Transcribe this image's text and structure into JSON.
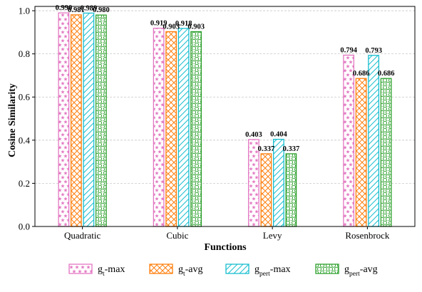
{
  "chart_data": {
    "type": "bar",
    "categories": [
      "Quadratic",
      "Cubic",
      "Levy",
      "Rosenbrock"
    ],
    "series": [
      {
        "name": "g_t-max",
        "legend_main": "g",
        "legend_sub": "t",
        "legend_suffix": "-max",
        "values": [
          0.99,
          0.919,
          0.403,
          0.794
        ],
        "labels": [
          "0.990",
          "0.919",
          "0.403",
          "0.794"
        ],
        "color": "#e377c2",
        "pattern": "star-icon"
      },
      {
        "name": "g_t-avg",
        "legend_main": "g",
        "legend_sub": "t",
        "legend_suffix": "-avg",
        "values": [
          0.981,
          0.903,
          0.337,
          0.686
        ],
        "labels": [
          "0.981",
          "0.903",
          "0.337",
          "0.686"
        ],
        "color": "#ff7f0e",
        "pattern": "crosshatch"
      },
      {
        "name": "g_pert-max",
        "legend_main": "g",
        "legend_sub": "pert",
        "legend_suffix": "-max",
        "values": [
          0.989,
          0.918,
          0.404,
          0.793
        ],
        "labels": [
          "0.989",
          "0.918",
          "0.404",
          "0.793"
        ],
        "color": "#17becf",
        "pattern": "diagonal"
      },
      {
        "name": "g_pert-avg",
        "legend_main": "g",
        "legend_sub": "pert",
        "legend_suffix": "-avg",
        "values": [
          0.98,
          0.903,
          0.337,
          0.686
        ],
        "labels": [
          "0.980",
          "0.903",
          "0.337",
          "0.686"
        ],
        "color": "#2ca02c",
        "pattern": "circle-icon"
      }
    ],
    "xlabel": "Functions",
    "ylabel": "Cosine Similarity",
    "ylim": [
      0.0,
      1.02
    ],
    "yticks": [
      "0.0",
      "0.2",
      "0.4",
      "0.6",
      "0.8",
      "1.0"
    ],
    "ytick_values": [
      0.0,
      0.2,
      0.4,
      0.6,
      0.8,
      1.0
    ],
    "grid": "horizontal dashed",
    "legend_position": "bottom"
  }
}
